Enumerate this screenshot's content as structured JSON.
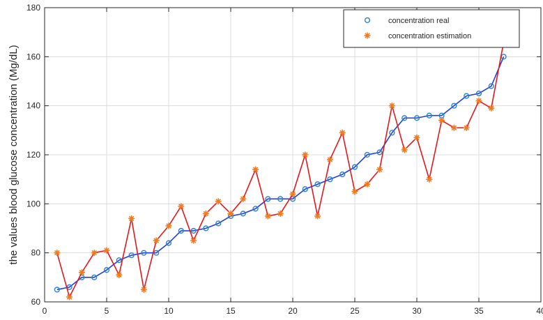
{
  "chart_data": {
    "type": "line",
    "title": "",
    "xlabel": "",
    "ylabel": "the values blood glucose concentration (Mg/dL)",
    "xlim": [
      0,
      40
    ],
    "ylim": [
      60,
      180
    ],
    "xticks": [
      0,
      5,
      10,
      15,
      20,
      25,
      30,
      35,
      40
    ],
    "yticks": [
      60,
      80,
      100,
      120,
      140,
      160,
      180
    ],
    "grid": true,
    "legend_position": "top-right",
    "x": [
      1,
      2,
      3,
      4,
      5,
      6,
      7,
      8,
      9,
      10,
      11,
      12,
      13,
      14,
      15,
      16,
      17,
      18,
      19,
      20,
      21,
      22,
      23,
      24,
      25,
      26,
      27,
      28,
      29,
      30,
      31,
      32,
      33,
      34,
      35,
      36,
      37
    ],
    "series": [
      {
        "name": "concentration real",
        "marker": "circle",
        "color": "#1f3ee0",
        "marker_color": "#2a7fd4",
        "values": [
          65,
          66,
          70,
          70,
          73,
          77,
          79,
          80,
          80,
          84,
          89,
          89,
          90,
          92,
          95,
          96,
          98,
          102,
          102,
          102,
          106,
          108,
          110,
          112,
          115,
          120,
          121,
          129,
          135,
          135,
          136,
          136,
          140,
          144,
          145,
          148,
          160
        ]
      },
      {
        "name": "concentration estimation",
        "marker": "asterisk",
        "color": "#e8151b",
        "marker_color": "#f07a1e",
        "values": [
          80,
          62,
          72,
          80,
          81,
          71,
          94,
          65,
          85,
          91,
          99,
          85,
          96,
          101,
          96,
          102,
          114,
          95,
          96,
          104,
          120,
          95,
          118,
          129,
          105,
          108,
          114,
          140,
          122,
          127,
          110,
          134,
          131,
          131,
          142,
          139,
          166
        ]
      }
    ]
  }
}
